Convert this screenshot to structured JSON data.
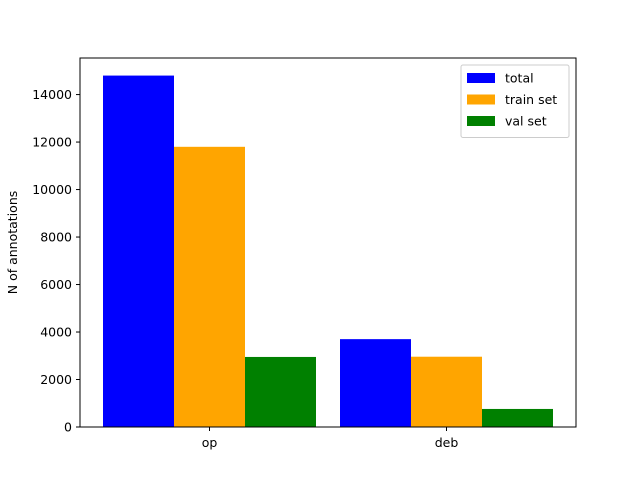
{
  "chart_data": {
    "type": "bar",
    "categories": [
      "op",
      "deb"
    ],
    "series": [
      {
        "name": "total",
        "values": [
          14800,
          3700
        ],
        "color": "#0000ff"
      },
      {
        "name": "train set",
        "values": [
          11800,
          2960
        ],
        "color": "#ffa500"
      },
      {
        "name": "val set",
        "values": [
          2950,
          760
        ],
        "color": "#008000"
      }
    ],
    "xlabel": "",
    "ylabel": "N of annotations",
    "ylim": [
      0,
      15540
    ],
    "yticks": [
      0,
      2000,
      4000,
      6000,
      8000,
      10000,
      12000,
      14000
    ],
    "legend_position": "top-right",
    "grid": false
  }
}
